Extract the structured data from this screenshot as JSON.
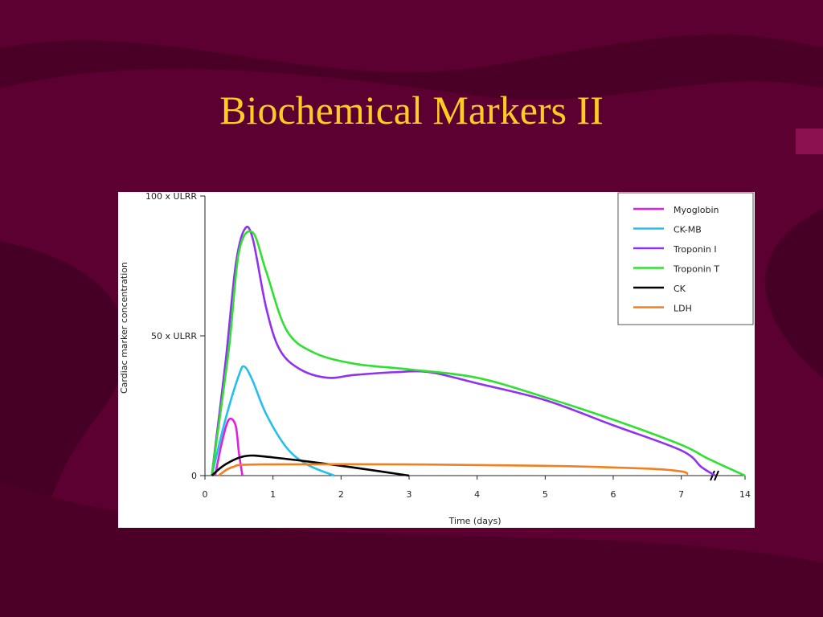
{
  "chart_data": {
    "type": "line",
    "title": "Biochemical Markers II",
    "ylabel": "Cardiac marker concentration",
    "xlabel": "Time (days)",
    "ylim": [
      0,
      100
    ],
    "yticks": [
      {
        "value": 0,
        "label": "0"
      },
      {
        "value": 50,
        "label": "50 x ULRR"
      },
      {
        "value": 100,
        "label": "100 x ULRR"
      }
    ],
    "xlim": [
      0,
      14
    ],
    "x_break": 7.5,
    "xticks": [
      0,
      1,
      2,
      3,
      4,
      5,
      6,
      7,
      14
    ],
    "legend": "upper right",
    "series": [
      {
        "name": "Myoglobin",
        "color": "#e020e0",
        "x": [
          0.15,
          0.25,
          0.35,
          0.45,
          0.5,
          0.55
        ],
        "values": [
          0,
          12,
          20,
          18,
          8,
          0
        ]
      },
      {
        "name": "CK-MB",
        "color": "#22c0ea",
        "x": [
          0.1,
          0.3,
          0.5,
          0.58,
          0.7,
          0.9,
          1.2,
          1.5,
          1.9
        ],
        "values": [
          0,
          20,
          36,
          39,
          34,
          22,
          10,
          4,
          0
        ]
      },
      {
        "name": "Troponin I",
        "color": "#9030f0",
        "x": [
          0.1,
          0.3,
          0.45,
          0.58,
          0.7,
          0.9,
          1.1,
          1.4,
          1.8,
          2.2,
          2.8,
          3.3,
          4,
          5,
          6,
          7,
          7.3,
          7.5
        ],
        "values": [
          0,
          40,
          75,
          88,
          85,
          60,
          45,
          38,
          35,
          36,
          37,
          37,
          33,
          27,
          18,
          9,
          3,
          0
        ]
      },
      {
        "name": "Troponin T",
        "color": "#30e030",
        "x": [
          0.1,
          0.35,
          0.5,
          0.7,
          0.9,
          1.2,
          1.6,
          2.2,
          3,
          4,
          5,
          6,
          7,
          7.4,
          14
        ],
        "values": [
          0,
          45,
          80,
          87,
          73,
          52,
          44,
          40,
          38,
          35,
          28,
          20,
          11,
          6,
          0
        ]
      },
      {
        "name": "CK",
        "color": "#000000",
        "x": [
          0.1,
          0.3,
          0.6,
          1,
          2,
          3
        ],
        "values": [
          0,
          4,
          7,
          6.5,
          3.5,
          0
        ]
      },
      {
        "name": "LDH",
        "color": "#f08020",
        "x": [
          0.2,
          0.4,
          0.8,
          3,
          5,
          6.5,
          7,
          7.1
        ],
        "values": [
          0,
          3,
          4,
          4,
          3.5,
          2.5,
          1.5,
          0.5
        ]
      }
    ]
  }
}
